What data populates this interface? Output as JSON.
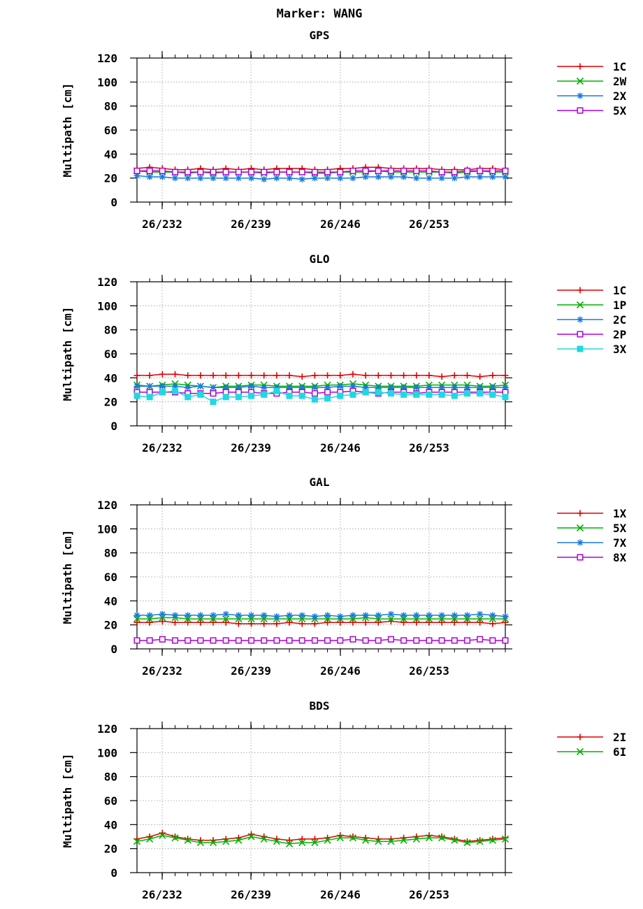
{
  "marker_title": "Marker: WANG",
  "colors": {
    "red": "#e00000",
    "green": "#00b000",
    "blue": "#1a7adf",
    "magenta": "#b000d8",
    "cyan": "#20d8e0"
  },
  "chart_data": [
    {
      "type": "line",
      "title": "GPS",
      "ylabel": "Multipath [cm]",
      "ylim": [
        0,
        120
      ],
      "yticks": [
        "0",
        "20",
        "40",
        "60",
        "80",
        "100",
        "120"
      ],
      "x_tick_labels": [
        "26/232",
        "26/239",
        "26/246",
        "26/253"
      ],
      "grid": true,
      "legend_position": "right",
      "x_start": 230,
      "x_end": 259,
      "series": [
        {
          "name": "1C",
          "color": "red",
          "marker": "plus",
          "x": [
            230,
            231,
            232,
            233,
            234,
            235,
            236,
            237,
            238,
            239,
            240,
            241,
            242,
            243,
            244,
            245,
            246,
            247,
            248,
            249,
            250,
            251,
            252,
            253,
            254,
            255,
            256,
            257,
            258,
            259
          ],
          "values": [
            28,
            29,
            28,
            27,
            27,
            28,
            27,
            28,
            27,
            28,
            27,
            28,
            28,
            28,
            27,
            27,
            28,
            28,
            29,
            29,
            28,
            28,
            28,
            28,
            27,
            27,
            27,
            28,
            28,
            27
          ]
        },
        {
          "name": "2W",
          "color": "green",
          "marker": "x",
          "x": [
            230,
            231,
            232,
            233,
            234,
            235,
            236,
            237,
            238,
            239,
            240,
            241,
            242,
            243,
            244,
            245,
            246,
            247,
            248,
            249,
            250,
            251,
            252,
            253,
            254,
            255,
            256,
            257,
            258,
            259
          ],
          "values": [
            26,
            25,
            25,
            25,
            24,
            25,
            24,
            25,
            25,
            25,
            24,
            25,
            25,
            25,
            24,
            24,
            25,
            25,
            25,
            26,
            25,
            25,
            25,
            25,
            25,
            24,
            25,
            26,
            25,
            25
          ]
        },
        {
          "name": "2X",
          "color": "blue",
          "marker": "star",
          "x": [
            230,
            231,
            232,
            233,
            234,
            235,
            236,
            237,
            238,
            239,
            240,
            241,
            242,
            243,
            244,
            245,
            246,
            247,
            248,
            249,
            250,
            251,
            252,
            253,
            254,
            255,
            256,
            257,
            258,
            259
          ],
          "values": [
            22,
            21,
            21,
            20,
            20,
            20,
            20,
            20,
            20,
            20,
            19,
            20,
            20,
            19,
            20,
            20,
            20,
            20,
            21,
            21,
            21,
            21,
            20,
            20,
            20,
            20,
            21,
            21,
            21,
            21
          ]
        },
        {
          "name": "5X",
          "color": "magenta",
          "marker": "square",
          "x": [
            230,
            231,
            232,
            233,
            234,
            235,
            236,
            237,
            238,
            239,
            240,
            241,
            242,
            243,
            244,
            245,
            246,
            247,
            248,
            249,
            250,
            251,
            252,
            253,
            254,
            255,
            256,
            257,
            258,
            259
          ],
          "values": [
            26,
            26,
            26,
            25,
            25,
            25,
            25,
            25,
            25,
            25,
            25,
            25,
            25,
            25,
            25,
            25,
            25,
            26,
            26,
            26,
            26,
            26,
            26,
            26,
            25,
            25,
            26,
            26,
            26,
            26
          ]
        }
      ]
    },
    {
      "type": "line",
      "title": "GLO",
      "ylabel": "Multipath [cm]",
      "ylim": [
        0,
        120
      ],
      "yticks": [
        "0",
        "20",
        "40",
        "60",
        "80",
        "100",
        "120"
      ],
      "x_tick_labels": [
        "26/232",
        "26/239",
        "26/246",
        "26/253"
      ],
      "grid": true,
      "legend_position": "right",
      "x_start": 230,
      "x_end": 259,
      "series": [
        {
          "name": "1C",
          "color": "red",
          "marker": "plus",
          "x": [
            230,
            231,
            232,
            233,
            234,
            235,
            236,
            237,
            238,
            239,
            240,
            241,
            242,
            243,
            244,
            245,
            246,
            247,
            248,
            249,
            250,
            251,
            252,
            253,
            254,
            255,
            256,
            257,
            258,
            259
          ],
          "values": [
            42,
            42,
            43,
            43,
            42,
            42,
            42,
            42,
            42,
            42,
            42,
            42,
            42,
            41,
            42,
            42,
            42,
            43,
            42,
            42,
            42,
            42,
            42,
            42,
            41,
            42,
            42,
            41,
            42,
            42
          ]
        },
        {
          "name": "1P",
          "color": "green",
          "marker": "x",
          "x": [
            230,
            231,
            232,
            233,
            234,
            235,
            236,
            237,
            238,
            239,
            240,
            241,
            242,
            243,
            244,
            245,
            246,
            247,
            248,
            249,
            250,
            251,
            252,
            253,
            254,
            255,
            256,
            257,
            258,
            259
          ],
          "values": [
            34,
            33,
            34,
            35,
            34,
            33,
            32,
            33,
            33,
            34,
            34,
            33,
            33,
            33,
            33,
            34,
            34,
            35,
            34,
            33,
            33,
            33,
            33,
            34,
            34,
            34,
            34,
            33,
            33,
            34
          ]
        },
        {
          "name": "2C",
          "color": "blue",
          "marker": "star",
          "x": [
            230,
            231,
            232,
            233,
            234,
            235,
            236,
            237,
            238,
            239,
            240,
            241,
            242,
            243,
            244,
            245,
            246,
            247,
            248,
            249,
            250,
            251,
            252,
            253,
            254,
            255,
            256,
            257,
            258,
            259
          ],
          "values": [
            33,
            33,
            33,
            33,
            32,
            33,
            32,
            32,
            32,
            33,
            32,
            32,
            32,
            32,
            32,
            32,
            33,
            33,
            32,
            32,
            32,
            32,
            32,
            32,
            32,
            32,
            32,
            32,
            32,
            32
          ]
        },
        {
          "name": "2P",
          "color": "magenta",
          "marker": "square",
          "x": [
            230,
            231,
            232,
            233,
            234,
            235,
            236,
            237,
            238,
            239,
            240,
            241,
            242,
            243,
            244,
            245,
            246,
            247,
            248,
            249,
            250,
            251,
            252,
            253,
            254,
            255,
            256,
            257,
            258,
            259
          ],
          "values": [
            28,
            28,
            28,
            28,
            27,
            27,
            27,
            28,
            28,
            28,
            27,
            27,
            28,
            28,
            27,
            28,
            28,
            29,
            28,
            27,
            28,
            28,
            27,
            28,
            28,
            28,
            28,
            28,
            28,
            28
          ]
        },
        {
          "name": "3X",
          "color": "cyan",
          "marker": "filled-square",
          "x": [
            230,
            231,
            232,
            233,
            234,
            235,
            236,
            237,
            238,
            239,
            240,
            241,
            242,
            243,
            244,
            245,
            246,
            247,
            248,
            249,
            250,
            251,
            252,
            253,
            254,
            255,
            256,
            257,
            258,
            259
          ],
          "values": [
            25,
            24,
            28,
            29,
            24,
            26,
            20,
            24,
            24,
            25,
            26,
            29,
            25,
            25,
            22,
            23,
            25,
            26,
            28,
            28,
            27,
            26,
            26,
            26,
            26,
            25,
            27,
            27,
            26,
            24
          ]
        }
      ]
    },
    {
      "type": "line",
      "title": "GAL",
      "ylabel": "Multipath [cm]",
      "ylim": [
        0,
        120
      ],
      "yticks": [
        "0",
        "20",
        "40",
        "60",
        "80",
        "100",
        "120"
      ],
      "x_tick_labels": [
        "26/232",
        "26/239",
        "26/246",
        "26/253"
      ],
      "grid": true,
      "legend_position": "right",
      "x_start": 230,
      "x_end": 259,
      "series": [
        {
          "name": "1X",
          "color": "red",
          "marker": "plus",
          "x": [
            230,
            231,
            232,
            233,
            234,
            235,
            236,
            237,
            238,
            239,
            240,
            241,
            242,
            243,
            244,
            245,
            246,
            247,
            248,
            249,
            250,
            251,
            252,
            253,
            254,
            255,
            256,
            257,
            258,
            259
          ],
          "values": [
            22,
            22,
            23,
            22,
            22,
            22,
            22,
            22,
            21,
            21,
            21,
            21,
            22,
            21,
            21,
            22,
            22,
            22,
            22,
            22,
            23,
            22,
            22,
            22,
            22,
            22,
            22,
            22,
            21,
            22
          ]
        },
        {
          "name": "5X",
          "color": "green",
          "marker": "x",
          "x": [
            230,
            231,
            232,
            233,
            234,
            235,
            236,
            237,
            238,
            239,
            240,
            241,
            242,
            243,
            244,
            245,
            246,
            247,
            248,
            249,
            250,
            251,
            252,
            253,
            254,
            255,
            256,
            257,
            258,
            259
          ],
          "values": [
            25,
            25,
            26,
            26,
            25,
            25,
            25,
            25,
            25,
            25,
            25,
            25,
            25,
            25,
            25,
            25,
            25,
            25,
            26,
            25,
            25,
            25,
            25,
            25,
            25,
            25,
            25,
            25,
            25,
            25
          ]
        },
        {
          "name": "7X",
          "color": "blue",
          "marker": "star",
          "x": [
            230,
            231,
            232,
            233,
            234,
            235,
            236,
            237,
            238,
            239,
            240,
            241,
            242,
            243,
            244,
            245,
            246,
            247,
            248,
            249,
            250,
            251,
            252,
            253,
            254,
            255,
            256,
            257,
            258,
            259
          ],
          "values": [
            28,
            28,
            29,
            28,
            28,
            28,
            28,
            29,
            28,
            28,
            28,
            27,
            28,
            28,
            27,
            28,
            27,
            28,
            28,
            28,
            29,
            28,
            28,
            28,
            28,
            28,
            28,
            29,
            28,
            27
          ]
        },
        {
          "name": "8X",
          "color": "magenta",
          "marker": "square",
          "x": [
            230,
            231,
            232,
            233,
            234,
            235,
            236,
            237,
            238,
            239,
            240,
            241,
            242,
            243,
            244,
            245,
            246,
            247,
            248,
            249,
            250,
            251,
            252,
            253,
            254,
            255,
            256,
            257,
            258,
            259
          ],
          "values": [
            7,
            7,
            8,
            7,
            7,
            7,
            7,
            7,
            7,
            7,
            7,
            7,
            7,
            7,
            7,
            7,
            7,
            8,
            7,
            7,
            8,
            7,
            7,
            7,
            7,
            7,
            7,
            8,
            7,
            7
          ]
        }
      ]
    },
    {
      "type": "line",
      "title": "BDS",
      "ylabel": "Multipath [cm]",
      "ylim": [
        0,
        120
      ],
      "yticks": [
        "0",
        "20",
        "40",
        "60",
        "80",
        "100",
        "120"
      ],
      "x_tick_labels": [
        "26/232",
        "26/239",
        "26/246",
        "26/253"
      ],
      "grid": true,
      "legend_position": "right",
      "x_start": 230,
      "x_end": 259,
      "series": [
        {
          "name": "2I",
          "color": "red",
          "marker": "plus",
          "x": [
            230,
            231,
            232,
            233,
            234,
            235,
            236,
            237,
            238,
            239,
            240,
            241,
            242,
            243,
            244,
            245,
            246,
            247,
            248,
            249,
            250,
            251,
            252,
            253,
            254,
            255,
            256,
            257,
            258,
            259
          ],
          "values": [
            28,
            30,
            33,
            30,
            28,
            27,
            27,
            28,
            29,
            32,
            30,
            28,
            27,
            28,
            28,
            29,
            31,
            30,
            29,
            28,
            28,
            29,
            30,
            31,
            30,
            28,
            26,
            27,
            28,
            29
          ]
        },
        {
          "name": "6I",
          "color": "green",
          "marker": "x",
          "x": [
            230,
            231,
            232,
            233,
            234,
            235,
            236,
            237,
            238,
            239,
            240,
            241,
            242,
            243,
            244,
            245,
            246,
            247,
            248,
            249,
            250,
            251,
            252,
            253,
            254,
            255,
            256,
            257,
            258,
            259
          ],
          "values": [
            26,
            28,
            31,
            29,
            27,
            25,
            25,
            26,
            27,
            30,
            28,
            26,
            24,
            25,
            25,
            27,
            29,
            29,
            27,
            26,
            26,
            27,
            28,
            29,
            29,
            27,
            25,
            26,
            27,
            28
          ]
        }
      ]
    }
  ]
}
